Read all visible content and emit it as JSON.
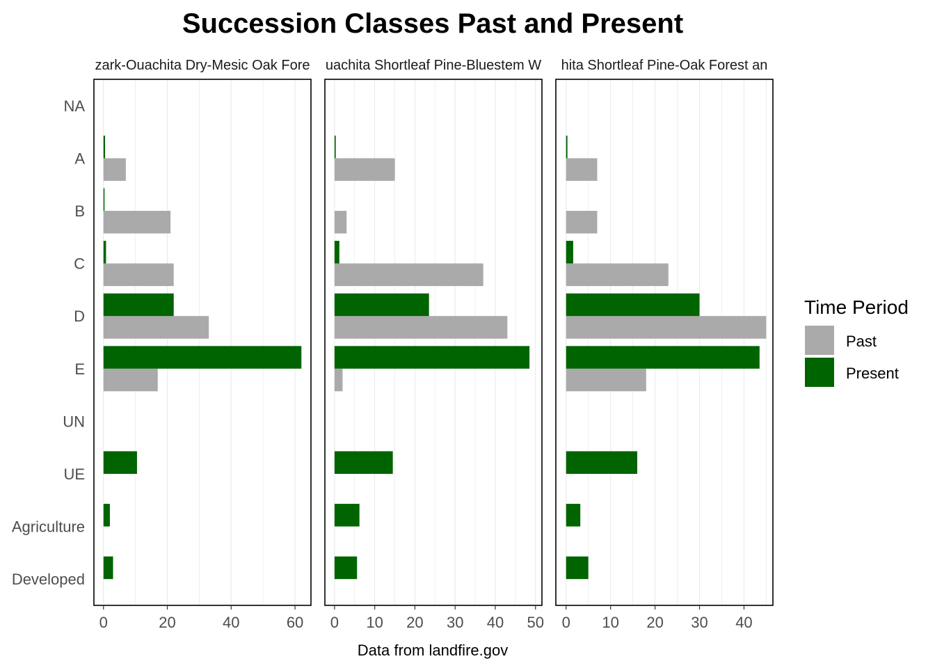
{
  "chart_data": {
    "type": "bar",
    "orientation": "horizontal",
    "title": "Succession Classes Past and Present",
    "xlabel": "Data from landfire.gov",
    "ylabel": "",
    "categories": [
      "NA",
      "A",
      "B",
      "C",
      "D",
      "E",
      "UN",
      "UE",
      "Agriculture",
      "Developed"
    ],
    "legend": {
      "title": "Time Period",
      "placement": "right",
      "entries": [
        {
          "name": "Past",
          "color": "#aaaaaa"
        },
        {
          "name": "Present",
          "color": "#006400"
        }
      ]
    },
    "grid": true,
    "panels": [
      {
        "strip_label": "zark-Ouachita Dry-Mesic Oak Fore",
        "xlim": [
          -3,
          65
        ],
        "xticks": [
          0,
          20,
          40,
          60
        ],
        "series": [
          {
            "name": "Past",
            "values": [
              null,
              7,
              21,
              22,
              33,
              17,
              null,
              null,
              null,
              null
            ]
          },
          {
            "name": "Present",
            "values": [
              null,
              0.5,
              0.2,
              0.8,
              22,
              62,
              null,
              10.5,
              2,
              3
            ]
          }
        ]
      },
      {
        "strip_label": "uachita Shortleaf Pine-Bluestem W",
        "xlim": [
          -2.4,
          51.6
        ],
        "xticks": [
          0,
          10,
          20,
          30,
          40,
          50
        ],
        "series": [
          {
            "name": "Past",
            "values": [
              null,
              15,
              3,
              37,
              43,
              2,
              null,
              null,
              null,
              null
            ]
          },
          {
            "name": "Present",
            "values": [
              null,
              0.3,
              0,
              1.2,
              23.5,
              48.5,
              null,
              14.5,
              6.2,
              5.6
            ]
          }
        ]
      },
      {
        "strip_label": "hita Shortleaf Pine-Oak Forest an",
        "xlim": [
          -2.3,
          46.5
        ],
        "xticks": [
          0,
          10,
          20,
          30,
          40
        ],
        "series": [
          {
            "name": "Past",
            "values": [
              null,
              7,
              7,
              23,
              45,
              18,
              null,
              null,
              null,
              null
            ]
          },
          {
            "name": "Present",
            "values": [
              null,
              0.3,
              0,
              1.6,
              30,
              43.5,
              null,
              16,
              3.2,
              5
            ]
          }
        ]
      }
    ]
  }
}
